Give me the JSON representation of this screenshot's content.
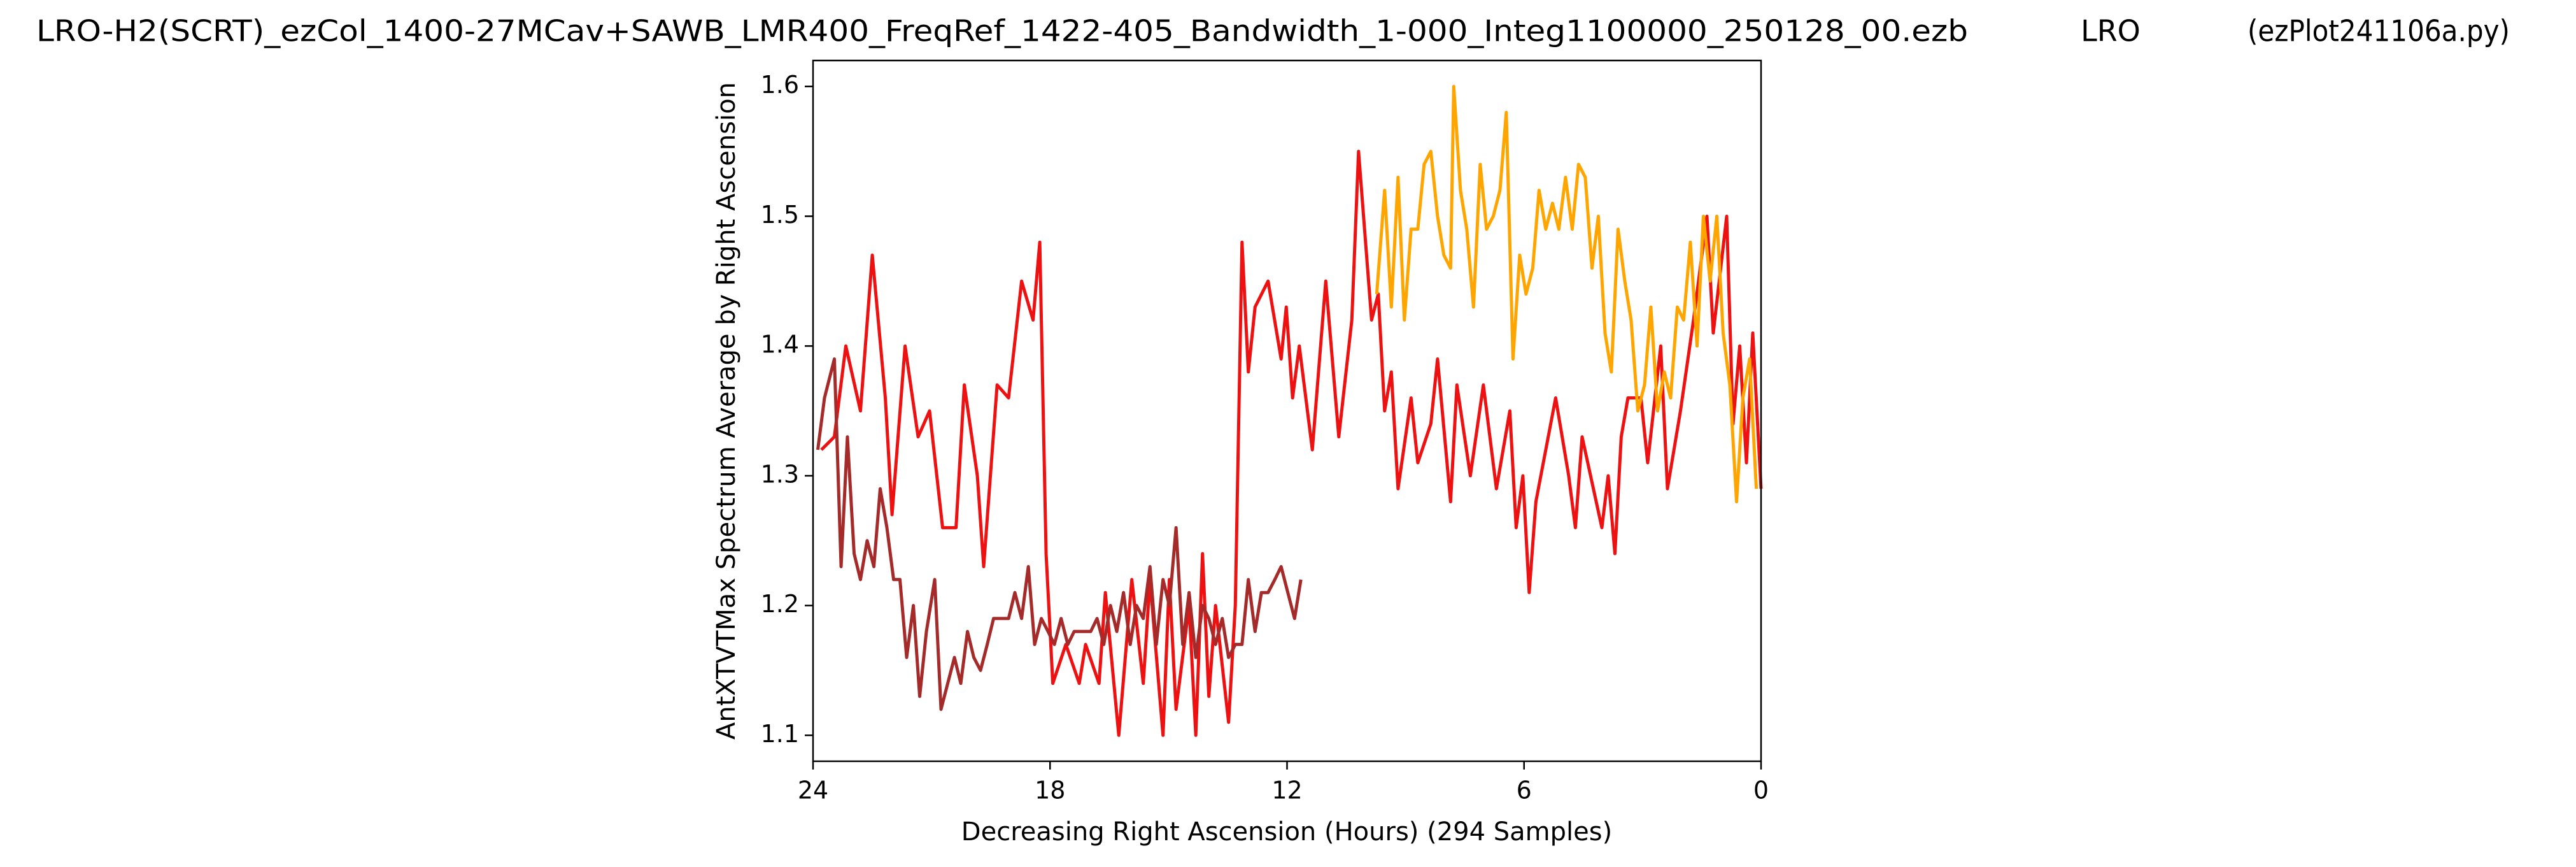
{
  "chart_data": {
    "type": "line",
    "title_parts": [
      "LRO-H2(SCRT)_ezCol_1400-27MCav+SAWB_LMR400_FreqRef_1422-405_Bandwidth_1-000_Integ1100000_250128_00.ezb",
      "LRO",
      "(ezPlot241106a.py)"
    ],
    "x_label": "Decreasing Right Ascension (Hours) (294 Samples)",
    "y_label": "AntXTVTMax Spectrum Average by Right Ascension",
    "xlim": [
      24,
      0
    ],
    "xticks": [
      24,
      18,
      12,
      6,
      0
    ],
    "ylim": [
      1.08,
      1.62
    ],
    "yticks": [
      1.1,
      1.2,
      1.3,
      1.4,
      1.5,
      1.6
    ],
    "grid": false,
    "series": [
      {
        "color": "#ee1111",
        "x": [
          23.79,
          23.46,
          23.17,
          22.8,
          22.5,
          22.17,
          22.0,
          21.67,
          21.34,
          21.05,
          20.72,
          20.38,
          20.17,
          19.84,
          19.68,
          19.34,
          19.05,
          18.72,
          18.43,
          18.26,
          18.1,
          17.93,
          17.6,
          17.26,
          17.1,
          16.76,
          16.6,
          16.26,
          15.93,
          15.64,
          15.47,
          15.14,
          14.98,
          14.81,
          14.48,
          14.31,
          14.14,
          13.98,
          13.81,
          13.48,
          13.31,
          13.14,
          12.98,
          12.81,
          12.48,
          12.15,
          12.02,
          11.86,
          11.69,
          11.36,
          11.02,
          10.69,
          10.36,
          10.19,
          9.86,
          9.69,
          9.53,
          9.36,
          9.19,
          8.86,
          8.69,
          8.36,
          8.19,
          7.86,
          7.7,
          7.36,
          7.03,
          6.7,
          6.36,
          6.2,
          6.03,
          5.87,
          5.7,
          5.2,
          4.87,
          4.7,
          4.53,
          4.03,
          3.87,
          3.7,
          3.54,
          3.37,
          3.04,
          2.87,
          2.54,
          2.37,
          2.04,
          1.71,
          1.37,
          1.21,
          0.87,
          0.71,
          0.54,
          0.37,
          0.21,
          0
        ],
        "values": [
          1.32,
          1.33,
          1.4,
          1.35,
          1.47,
          1.36,
          1.27,
          1.4,
          1.33,
          1.35,
          1.26,
          1.26,
          1.37,
          1.3,
          1.23,
          1.37,
          1.36,
          1.45,
          1.42,
          1.48,
          1.24,
          1.14,
          1.17,
          1.14,
          1.17,
          1.14,
          1.21,
          1.1,
          1.22,
          1.14,
          1.22,
          1.1,
          1.22,
          1.12,
          1.2,
          1.1,
          1.24,
          1.13,
          1.2,
          1.11,
          1.2,
          1.48,
          1.38,
          1.43,
          1.45,
          1.39,
          1.43,
          1.36,
          1.4,
          1.32,
          1.45,
          1.33,
          1.42,
          1.55,
          1.42,
          1.44,
          1.35,
          1.38,
          1.29,
          1.36,
          1.31,
          1.34,
          1.39,
          1.28,
          1.37,
          1.3,
          1.37,
          1.29,
          1.35,
          1.26,
          1.3,
          1.21,
          1.28,
          1.36,
          1.3,
          1.26,
          1.33,
          1.26,
          1.3,
          1.24,
          1.33,
          1.36,
          1.36,
          1.31,
          1.4,
          1.29,
          1.35,
          1.42,
          1.5,
          1.41,
          1.5,
          1.34,
          1.4,
          1.31,
          1.41,
          1.29
        ]
      },
      {
        "color": "#a52a2a",
        "x": [
          23.88,
          23.71,
          23.46,
          23.29,
          23.13,
          22.96,
          22.8,
          22.63,
          22.46,
          22.3,
          22.13,
          21.96,
          21.8,
          21.63,
          21.46,
          21.3,
          21.13,
          20.92,
          20.76,
          20.59,
          20.42,
          20.26,
          20.09,
          19.93,
          19.76,
          19.59,
          19.43,
          19.22,
          19.05,
          18.89,
          18.72,
          18.55,
          18.39,
          18.22,
          18.05,
          17.89,
          17.72,
          17.55,
          17.39,
          17.22,
          16.97,
          16.81,
          16.64,
          16.47,
          16.31,
          16.14,
          15.97,
          15.81,
          15.64,
          15.47,
          15.31,
          15.14,
          14.98,
          14.81,
          14.64,
          14.48,
          14.31,
          14.14,
          13.98,
          13.81,
          13.64,
          13.48,
          13.31,
          13.14,
          12.98,
          12.81,
          12.65,
          12.48,
          12.31,
          12.15,
          11.98,
          11.81,
          11.65
        ],
        "values": [
          1.32,
          1.36,
          1.39,
          1.23,
          1.33,
          1.24,
          1.22,
          1.25,
          1.23,
          1.29,
          1.26,
          1.22,
          1.22,
          1.16,
          1.2,
          1.13,
          1.18,
          1.22,
          1.12,
          1.14,
          1.16,
          1.14,
          1.18,
          1.16,
          1.15,
          1.17,
          1.19,
          1.19,
          1.19,
          1.21,
          1.19,
          1.23,
          1.17,
          1.19,
          1.18,
          1.17,
          1.19,
          1.17,
          1.18,
          1.18,
          1.18,
          1.19,
          1.17,
          1.2,
          1.18,
          1.21,
          1.17,
          1.2,
          1.19,
          1.23,
          1.17,
          1.22,
          1.2,
          1.26,
          1.17,
          1.21,
          1.16,
          1.2,
          1.19,
          1.17,
          1.19,
          1.16,
          1.17,
          1.17,
          1.22,
          1.18,
          1.21,
          1.21,
          1.22,
          1.23,
          1.21,
          1.19,
          1.22
        ]
      },
      {
        "color": "#ffa500",
        "x": [
          9.73,
          9.53,
          9.36,
          9.19,
          9.03,
          8.86,
          8.69,
          8.53,
          8.36,
          8.19,
          8.03,
          7.86,
          7.78,
          7.61,
          7.45,
          7.28,
          7.11,
          6.95,
          6.78,
          6.61,
          6.45,
          6.28,
          6.11,
          5.95,
          5.78,
          5.62,
          5.45,
          5.28,
          5.12,
          4.95,
          4.78,
          4.62,
          4.45,
          4.28,
          4.12,
          3.95,
          3.79,
          3.62,
          3.45,
          3.29,
          3.12,
          2.95,
          2.79,
          2.62,
          2.45,
          2.29,
          2.12,
          1.96,
          1.79,
          1.62,
          1.46,
          1.29,
          1.12,
          0.96,
          0.79,
          0.62,
          0.46,
          0.29,
          0.12
        ],
        "values": [
          1.44,
          1.52,
          1.43,
          1.53,
          1.42,
          1.49,
          1.49,
          1.54,
          1.55,
          1.5,
          1.47,
          1.46,
          1.6,
          1.52,
          1.49,
          1.43,
          1.54,
          1.49,
          1.5,
          1.52,
          1.58,
          1.39,
          1.47,
          1.44,
          1.46,
          1.52,
          1.49,
          1.51,
          1.49,
          1.53,
          1.49,
          1.54,
          1.53,
          1.46,
          1.5,
          1.41,
          1.38,
          1.49,
          1.45,
          1.42,
          1.35,
          1.37,
          1.43,
          1.35,
          1.38,
          1.36,
          1.43,
          1.42,
          1.48,
          1.4,
          1.5,
          1.45,
          1.5,
          1.41,
          1.37,
          1.28,
          1.36,
          1.39,
          1.29
        ]
      }
    ]
  }
}
